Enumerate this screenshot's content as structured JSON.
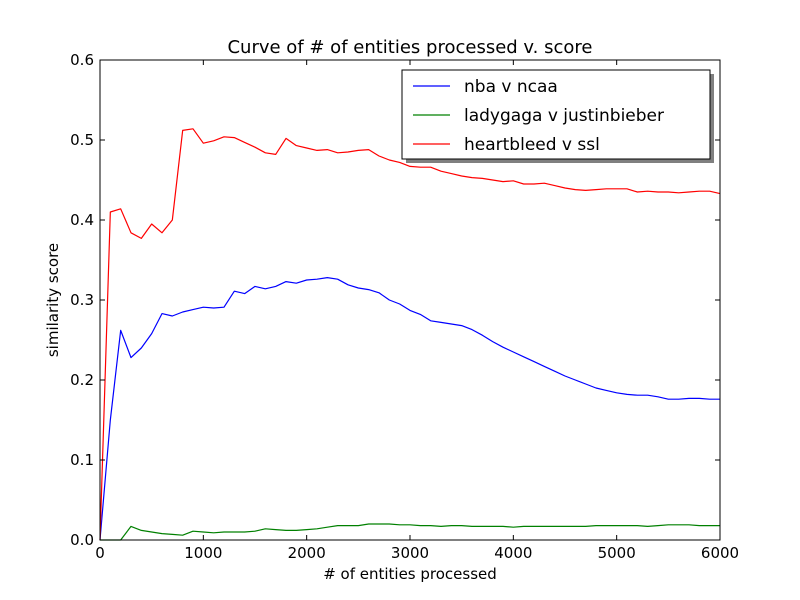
{
  "chart_data": {
    "type": "line",
    "title": "Curve of # of entities processed v. score",
    "xlabel": "# of entities processed",
    "ylabel": "similarity score",
    "xlim": [
      0,
      6000
    ],
    "ylim": [
      0,
      0.6
    ],
    "xticks": [
      "0",
      "1000",
      "2000",
      "3000",
      "4000",
      "5000",
      "6000"
    ],
    "yticks": [
      "0.0",
      "0.1",
      "0.2",
      "0.3",
      "0.4",
      "0.5",
      "0.6"
    ],
    "grid": false,
    "legend_position": "top-right",
    "series": [
      {
        "name": "nba v ncaa",
        "color": "#0000ff",
        "x": [
          0,
          100,
          200,
          300,
          400,
          500,
          600,
          700,
          800,
          900,
          1000,
          1100,
          1200,
          1300,
          1400,
          1500,
          1600,
          1700,
          1800,
          1900,
          2000,
          2100,
          2200,
          2300,
          2400,
          2500,
          2600,
          2700,
          2800,
          2900,
          3000,
          3100,
          3200,
          3300,
          3400,
          3500,
          3600,
          3700,
          3800,
          3900,
          4000,
          4100,
          4200,
          4300,
          4400,
          4500,
          4600,
          4700,
          4800,
          4900,
          5000,
          5100,
          5200,
          5300,
          5400,
          5500,
          5600,
          5700,
          5800,
          5900,
          6000
        ],
        "y": [
          0.0,
          0.15,
          0.262,
          0.228,
          0.24,
          0.258,
          0.283,
          0.28,
          0.285,
          0.288,
          0.291,
          0.29,
          0.291,
          0.311,
          0.308,
          0.317,
          0.314,
          0.317,
          0.323,
          0.321,
          0.325,
          0.326,
          0.328,
          0.326,
          0.319,
          0.315,
          0.313,
          0.309,
          0.3,
          0.295,
          0.287,
          0.282,
          0.274,
          0.272,
          0.27,
          0.268,
          0.263,
          0.256,
          0.248,
          0.241,
          0.235,
          0.229,
          0.223,
          0.217,
          0.211,
          0.205,
          0.2,
          0.195,
          0.19,
          0.187,
          0.184,
          0.182,
          0.181,
          0.181,
          0.179,
          0.176,
          0.176,
          0.177,
          0.177,
          0.176,
          0.176
        ]
      },
      {
        "name": "ladygaga v justinbieber",
        "color": "#008000",
        "x": [
          0,
          100,
          200,
          300,
          400,
          500,
          600,
          700,
          800,
          900,
          1000,
          1100,
          1200,
          1300,
          1400,
          1500,
          1600,
          1700,
          1800,
          1900,
          2000,
          2100,
          2200,
          2300,
          2400,
          2500,
          2600,
          2700,
          2800,
          2900,
          3000,
          3100,
          3200,
          3300,
          3400,
          3500,
          3600,
          3700,
          3800,
          3900,
          4000,
          4100,
          4200,
          4300,
          4400,
          4500,
          4600,
          4700,
          4800,
          4900,
          5000,
          5100,
          5200,
          5300,
          5400,
          5500,
          5600,
          5700,
          5800,
          5900,
          6000
        ],
        "y": [
          0.0,
          0.0,
          0.0,
          0.017,
          0.012,
          0.01,
          0.008,
          0.007,
          0.006,
          0.011,
          0.01,
          0.009,
          0.01,
          0.01,
          0.01,
          0.011,
          0.014,
          0.013,
          0.012,
          0.012,
          0.013,
          0.014,
          0.016,
          0.018,
          0.018,
          0.018,
          0.02,
          0.02,
          0.02,
          0.019,
          0.019,
          0.018,
          0.018,
          0.017,
          0.018,
          0.018,
          0.017,
          0.017,
          0.017,
          0.017,
          0.016,
          0.017,
          0.017,
          0.017,
          0.017,
          0.017,
          0.017,
          0.017,
          0.018,
          0.018,
          0.018,
          0.018,
          0.018,
          0.017,
          0.018,
          0.019,
          0.019,
          0.019,
          0.018,
          0.018,
          0.018
        ]
      },
      {
        "name": "heartbleed v ssl",
        "color": "#ff0000",
        "x": [
          0,
          100,
          200,
          300,
          400,
          500,
          600,
          700,
          800,
          900,
          1000,
          1100,
          1200,
          1300,
          1400,
          1500,
          1600,
          1700,
          1800,
          1900,
          2000,
          2100,
          2200,
          2300,
          2400,
          2500,
          2600,
          2700,
          2800,
          2900,
          3000,
          3100,
          3200,
          3300,
          3400,
          3500,
          3600,
          3700,
          3800,
          3900,
          4000,
          4100,
          4200,
          4300,
          4400,
          4500,
          4600,
          4700,
          4800,
          4900,
          5000,
          5100,
          5200,
          5300,
          5400,
          5500,
          5600,
          5700,
          5800,
          5900,
          6000
        ],
        "y": [
          0.0,
          0.41,
          0.414,
          0.384,
          0.377,
          0.395,
          0.384,
          0.4,
          0.512,
          0.514,
          0.496,
          0.499,
          0.504,
          0.503,
          0.497,
          0.491,
          0.484,
          0.482,
          0.502,
          0.493,
          0.49,
          0.487,
          0.488,
          0.484,
          0.485,
          0.487,
          0.488,
          0.48,
          0.475,
          0.472,
          0.467,
          0.466,
          0.466,
          0.461,
          0.458,
          0.455,
          0.453,
          0.452,
          0.45,
          0.448,
          0.449,
          0.445,
          0.445,
          0.446,
          0.443,
          0.44,
          0.438,
          0.437,
          0.438,
          0.439,
          0.439,
          0.439,
          0.435,
          0.436,
          0.435,
          0.435,
          0.434,
          0.435,
          0.436,
          0.436,
          0.433
        ]
      }
    ]
  }
}
